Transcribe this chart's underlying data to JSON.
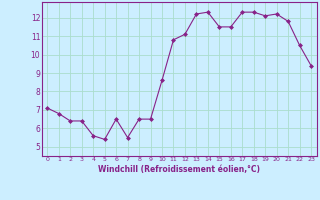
{
  "x": [
    0,
    1,
    2,
    3,
    4,
    5,
    6,
    7,
    8,
    9,
    10,
    11,
    12,
    13,
    14,
    15,
    16,
    17,
    18,
    19,
    20,
    21,
    22,
    23
  ],
  "y": [
    7.1,
    6.8,
    6.4,
    6.4,
    5.6,
    5.4,
    6.5,
    5.5,
    6.5,
    6.5,
    8.6,
    10.8,
    11.1,
    12.2,
    12.3,
    11.5,
    11.5,
    12.3,
    12.3,
    12.1,
    12.2,
    11.8,
    10.5,
    9.4
  ],
  "line_color": "#882288",
  "marker": "D",
  "marker_size": 2.0,
  "bg_color": "#cceeff",
  "grid_color": "#aaddcc",
  "xlabel": "Windchill (Refroidissement éolien,°C)",
  "xlim": [
    -0.5,
    23.5
  ],
  "ylim": [
    4.5,
    12.85
  ],
  "yticks": [
    5,
    6,
    7,
    8,
    9,
    10,
    11,
    12
  ],
  "xticks": [
    0,
    1,
    2,
    3,
    4,
    5,
    6,
    7,
    8,
    9,
    10,
    11,
    12,
    13,
    14,
    15,
    16,
    17,
    18,
    19,
    20,
    21,
    22,
    23
  ]
}
